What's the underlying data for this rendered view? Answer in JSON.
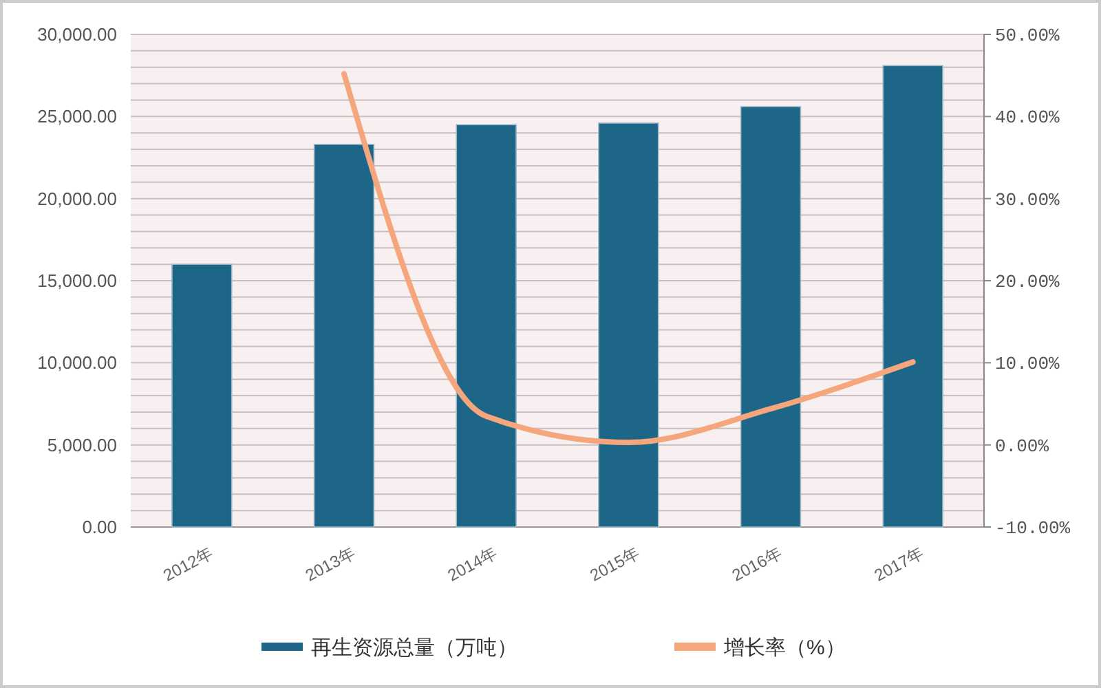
{
  "chart_data": {
    "type": "bar",
    "categories": [
      "2012年",
      "2013年",
      "2014年",
      "2015年",
      "2016年",
      "2017年"
    ],
    "series": [
      {
        "name": "再生资源总量（万吨）",
        "type": "bar",
        "color": "#1d6687",
        "values": [
          16000,
          23300,
          24500,
          24600,
          25600,
          28100
        ]
      },
      {
        "name": "增长率（%）",
        "type": "line",
        "axis": "y2",
        "color": "#f5a67c",
        "values": [
          null,
          45.2,
          3.5,
          0.3,
          4.4,
          10.1
        ]
      }
    ],
    "ylim": [
      0,
      30000
    ],
    "yticks": [
      {
        "value": 0,
        "label": "0.00"
      },
      {
        "value": 1000,
        "label": null
      },
      {
        "value": 2000,
        "label": null
      },
      {
        "value": 3000,
        "label": null
      },
      {
        "value": 4000,
        "label": null
      },
      {
        "value": 5000,
        "label": "5,000.00"
      },
      {
        "value": 6000,
        "label": null
      },
      {
        "value": 7000,
        "label": null
      },
      {
        "value": 8000,
        "label": null
      },
      {
        "value": 9000,
        "label": null
      },
      {
        "value": 10000,
        "label": "10,000.00"
      },
      {
        "value": 11000,
        "label": null
      },
      {
        "value": 12000,
        "label": null
      },
      {
        "value": 13000,
        "label": null
      },
      {
        "value": 14000,
        "label": null
      },
      {
        "value": 15000,
        "label": "15,000.00"
      },
      {
        "value": 16000,
        "label": null
      },
      {
        "value": 17000,
        "label": null
      },
      {
        "value": 18000,
        "label": null
      },
      {
        "value": 19000,
        "label": null
      },
      {
        "value": 20000,
        "label": "20,000.00"
      },
      {
        "value": 21000,
        "label": null
      },
      {
        "value": 22000,
        "label": null
      },
      {
        "value": 23000,
        "label": null
      },
      {
        "value": 24000,
        "label": null
      },
      {
        "value": 25000,
        "label": "25,000.00"
      },
      {
        "value": 26000,
        "label": null
      },
      {
        "value": 27000,
        "label": null
      },
      {
        "value": 28000,
        "label": null
      },
      {
        "value": 29000,
        "label": null
      },
      {
        "value": 30000,
        "label": "30,000.00"
      }
    ],
    "y2lim": [
      -10,
      50
    ],
    "y2ticks": [
      {
        "value": -10,
        "label": "-10.00%"
      },
      {
        "value": 0,
        "label": "0.00%"
      },
      {
        "value": 10,
        "label": "10.00%"
      },
      {
        "value": 20,
        "label": "20.00%"
      },
      {
        "value": 30,
        "label": "30.00%"
      },
      {
        "value": 40,
        "label": "40.00%"
      },
      {
        "value": 50,
        "label": "50.00%"
      }
    ],
    "grid": "y",
    "legend": "bottom",
    "marker": "none",
    "line_style": "solid"
  }
}
